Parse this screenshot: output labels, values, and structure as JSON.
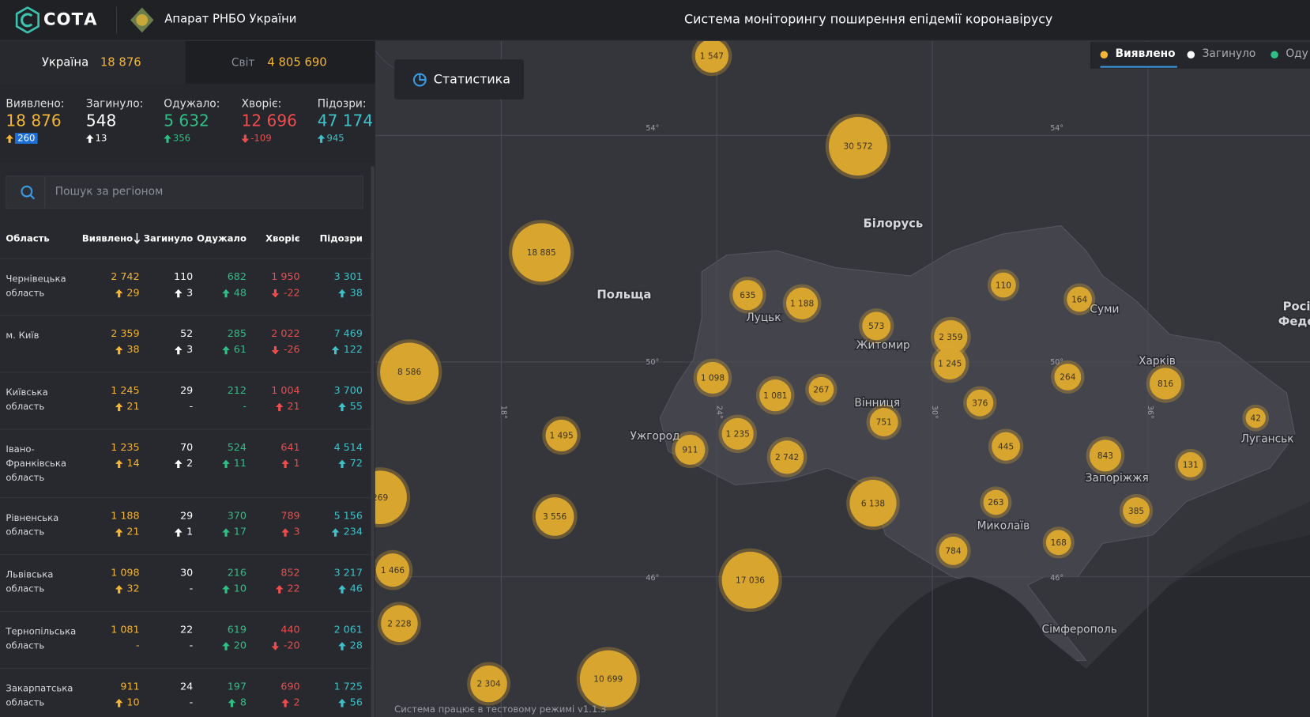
{
  "header": {
    "logo": "СОТА",
    "organization": "Апарат РНБО України",
    "title": "Система моніторингу поширення епідемії коронавірусу"
  },
  "scope_tabs": [
    {
      "label": "Україна",
      "value": "18 876"
    },
    {
      "label": "Світ",
      "value": "4 805 690"
    }
  ],
  "stats": [
    {
      "label": "Виявлено:",
      "value": "18 876",
      "delta": "260"
    },
    {
      "label": "Загинуло:",
      "value": "548",
      "delta": "13"
    },
    {
      "label": "Одужало:",
      "value": "5 632",
      "delta": "356"
    },
    {
      "label": "Хворіє:",
      "value": "12 696",
      "delta": "-109"
    },
    {
      "label": "Підозри:",
      "value": "47 174",
      "delta": "945"
    }
  ],
  "search": {
    "placeholder": "Пошук за регіоном"
  },
  "table": {
    "headers": [
      "Область",
      "Виявлено",
      "Загинуло",
      "Одужало",
      "Хворіє",
      "Підозри"
    ],
    "rows": [
      [
        "Чернівецька область",
        "2 742",
        "29",
        "110",
        "3",
        "682",
        "48",
        "1 950",
        "-22",
        "3 301",
        "38"
      ],
      [
        "м. Київ",
        "2 359",
        "38",
        "52",
        "3",
        "285",
        "61",
        "2 022",
        "-26",
        "7 469",
        "122"
      ],
      [
        "Київська область",
        "1 245",
        "21",
        "29",
        "-",
        "212",
        "-",
        "1 004",
        "21",
        "3 700",
        "55"
      ],
      [
        "Івано-Франківська область",
        "1 235",
        "14",
        "70",
        "2",
        "524",
        "11",
        "641",
        "1",
        "4 514",
        "72"
      ],
      [
        "Рівненська область",
        "1 188",
        "21",
        "29",
        "1",
        "370",
        "17",
        "789",
        "3",
        "5 156",
        "234"
      ],
      [
        "Львівська область",
        "1 098",
        "32",
        "30",
        "-",
        "216",
        "10",
        "852",
        "22",
        "3 217",
        "46"
      ],
      [
        "Тернопільська область",
        "1 081",
        "-",
        "22",
        "-",
        "619",
        "20",
        "440",
        "-20",
        "2 061",
        "28"
      ],
      [
        "Закарпатська область",
        "911",
        "10",
        "24",
        "-",
        "197",
        "8",
        "690",
        "2",
        "1 725",
        "56"
      ]
    ]
  },
  "map": {
    "button": "Статистика",
    "layers": [
      "Виявлено",
      "Загинуло",
      "Оду"
    ],
    "places": [
      "Польща",
      "Білорусь",
      "Луцьк",
      "Житомир",
      "Вінниця",
      "Ужгород",
      "Суми",
      "Харків",
      "Луганськ",
      "Запоріжжя",
      "Миколаїв",
      "Сімферополь",
      "Росі",
      "Феде"
    ],
    "graticule": [
      "54°",
      "54°",
      "50°",
      "50°",
      "46°",
      "46°",
      "18°",
      "24°",
      "30°",
      "36°"
    ],
    "bubbles": [
      "1 547",
      "30 572",
      "18 885",
      "8 586",
      "1 495",
      "3 556",
      "269",
      "1 466",
      "2 228",
      "2 304",
      "10 699",
      "17 036",
      "6 138",
      "635",
      "1 188",
      "573",
      "2 359",
      "1 245",
      "110",
      "164",
      "1 098",
      "1 081",
      "267",
      "751",
      "376",
      "264",
      "816",
      "42",
      "911",
      "1 235",
      "2 742",
      "445",
      "843",
      "131",
      "263",
      "385",
      "784",
      "168"
    ],
    "footer": "Система працює в тестовому режимі v1.1.3"
  }
}
